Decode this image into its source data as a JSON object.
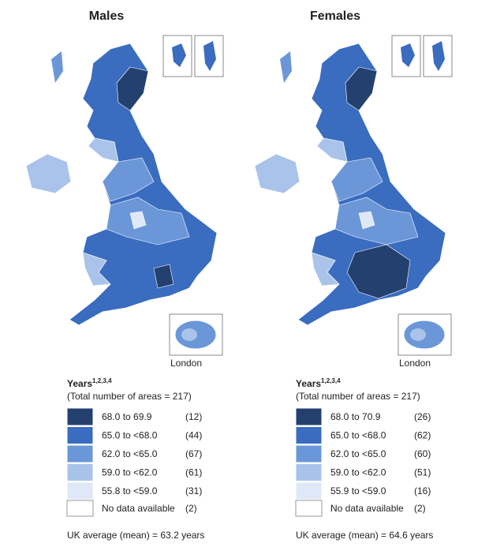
{
  "panels": [
    {
      "title": "Males",
      "london_label": "London",
      "legend": {
        "heading": "Years",
        "superscript": "1,2,3,4",
        "subheading": "(Total number of areas = 217)",
        "items": [
          {
            "label": "68.0 to 69.9",
            "count": "(12)",
            "color": "#24406f"
          },
          {
            "label": "65.0 to <68.0",
            "count": "(44)",
            "color": "#3a6cc0"
          },
          {
            "label": "62.0 to <65.0",
            "count": "(67)",
            "color": "#6b97d8"
          },
          {
            "label": "59.0 to <62.0",
            "count": "(61)",
            "color": "#a9c3ea"
          },
          {
            "label": "55.8 to <59.0",
            "count": "(31)",
            "color": "#dfe8f7"
          }
        ],
        "no_data": {
          "label": "No data available",
          "count": "(2)",
          "color": "#ffffff"
        }
      },
      "average": "UK average (mean) = 63.2 years"
    },
    {
      "title": "Females",
      "london_label": "London",
      "legend": {
        "heading": "Years",
        "superscript": "1,2,3,4",
        "subheading": "(Total number of areas = 217)",
        "items": [
          {
            "label": "68.0 to 70.9",
            "count": "(26)",
            "color": "#24406f"
          },
          {
            "label": "65.0 to <68.0",
            "count": "(62)",
            "color": "#3a6cc0"
          },
          {
            "label": "62.0 to <65.0",
            "count": "(60)",
            "color": "#6b97d8"
          },
          {
            "label": "59.0 to <62.0",
            "count": "(51)",
            "color": "#a9c3ea"
          },
          {
            "label": "55.9 to <59.0",
            "count": "(16)",
            "color": "#dfe8f7"
          }
        ],
        "no_data": {
          "label": "No data available",
          "count": "(2)",
          "color": "#ffffff"
        }
      },
      "average": "UK average (mean) = 64.6 years"
    }
  ]
}
